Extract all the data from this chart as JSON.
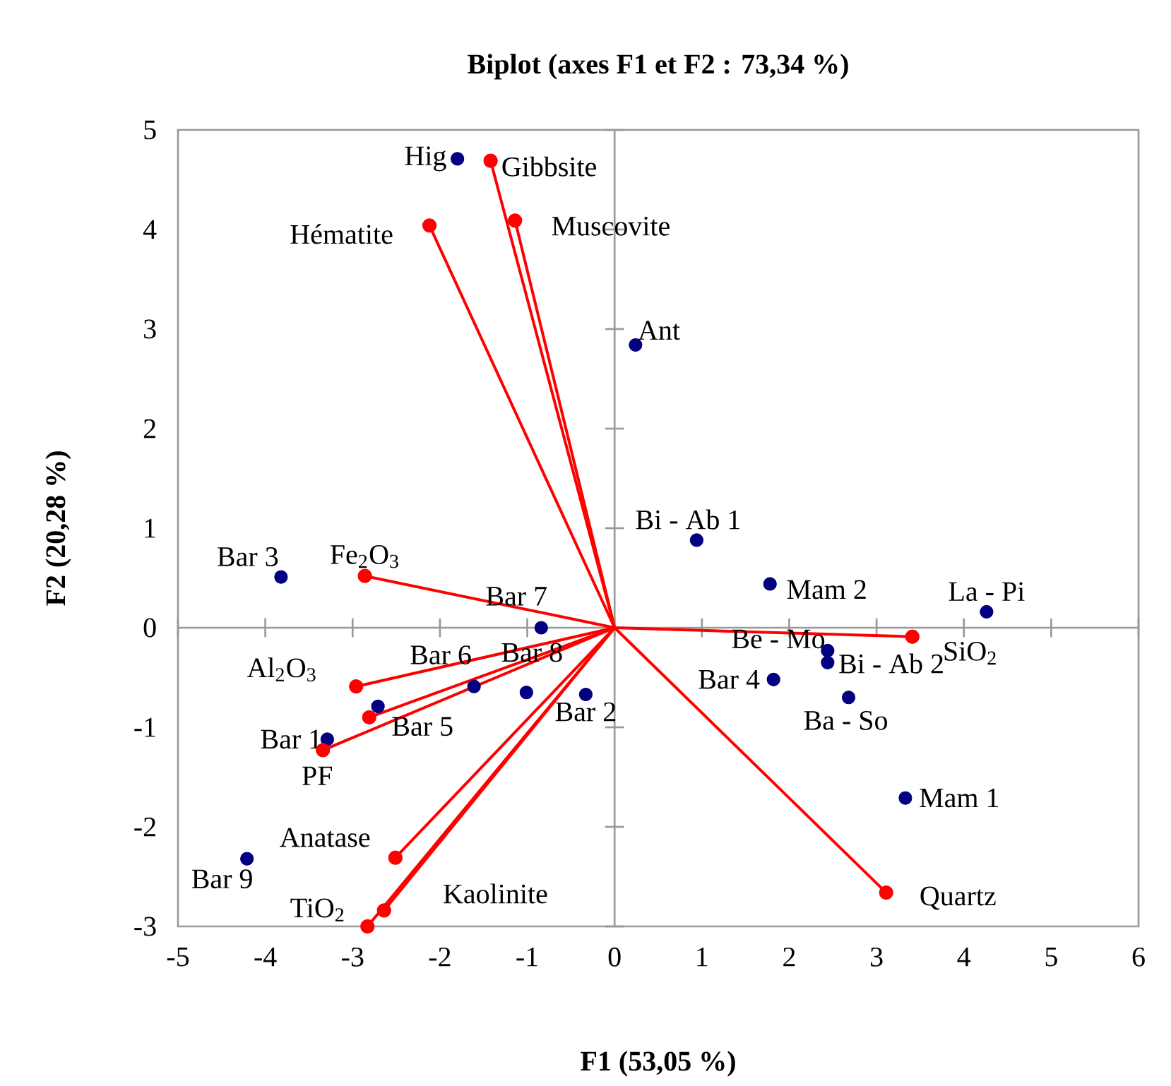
{
  "chart_data": {
    "type": "scatter",
    "title": "Biplot (axes F1 et F2 : 73,34 %)",
    "xlabel": "F1 (53,05 %)",
    "ylabel": "F2 (20,28 %)",
    "xlim": [
      -5,
      6
    ],
    "ylim": [
      -3,
      5
    ],
    "xticks": [
      -5,
      -4,
      -3,
      -2,
      -1,
      0,
      1,
      2,
      3,
      4,
      5,
      6
    ],
    "yticks": [
      -3,
      -2,
      -1,
      0,
      1,
      2,
      3,
      4,
      5
    ],
    "series": [
      {
        "type": "scatter",
        "color": "#000080",
        "marker": "circle",
        "x": [
          -1.8,
          0.24,
          0.94,
          1.78,
          4.26,
          2.44,
          2.44,
          2.68,
          1.82,
          3.33,
          -3.82,
          -0.84,
          -1.61,
          -1.01,
          -0.33,
          -2.71,
          -3.29,
          -4.21
        ],
        "values": [
          4.71,
          2.84,
          0.88,
          0.44,
          0.16,
          -0.23,
          -0.35,
          -0.7,
          -0.52,
          -1.71,
          0.51,
          0.0,
          -0.59,
          -0.65,
          -0.67,
          -0.79,
          -1.12,
          -2.32
        ]
      },
      {
        "type": "scatter",
        "color": "#ff0000",
        "marker": "circle",
        "x": [
          -1.42,
          -1.14,
          -2.12,
          -2.86,
          -2.96,
          -2.81,
          -3.34,
          -2.51,
          -2.64,
          -2.83,
          3.41,
          3.11
        ],
        "values": [
          4.69,
          4.09,
          4.04,
          0.52,
          -0.59,
          -0.9,
          -1.23,
          -2.31,
          -2.84,
          -3.0,
          -0.09,
          -2.66
        ]
      },
      {
        "type": "line",
        "color": "#ff0000",
        "x": [
          0,
          -1.42
        ],
        "values": [
          0,
          4.69
        ]
      },
      {
        "type": "line",
        "color": "#ff0000",
        "x": [
          0,
          -1.14
        ],
        "values": [
          0,
          4.09
        ]
      },
      {
        "type": "line",
        "color": "#ff0000",
        "x": [
          0,
          -2.12
        ],
        "values": [
          0,
          4.04
        ]
      },
      {
        "type": "line",
        "color": "#ff0000",
        "x": [
          0,
          -2.86
        ],
        "values": [
          0,
          0.52
        ]
      },
      {
        "type": "line",
        "color": "#ff0000",
        "x": [
          0,
          -2.96
        ],
        "values": [
          0,
          -0.59
        ]
      },
      {
        "type": "line",
        "color": "#ff0000",
        "x": [
          0,
          -2.81
        ],
        "values": [
          0,
          -0.9
        ]
      },
      {
        "type": "line",
        "color": "#ff0000",
        "x": [
          0,
          -3.34
        ],
        "values": [
          0,
          -1.23
        ]
      },
      {
        "type": "line",
        "color": "#ff0000",
        "x": [
          0,
          -2.51
        ],
        "values": [
          0,
          -2.31
        ]
      },
      {
        "type": "line",
        "color": "#ff0000",
        "x": [
          0,
          -2.64
        ],
        "values": [
          0,
          -2.84
        ]
      },
      {
        "type": "line",
        "color": "#ff0000",
        "x": [
          0,
          -2.83
        ],
        "values": [
          0,
          -3.0
        ]
      },
      {
        "type": "line",
        "color": "#ff0000",
        "x": [
          0,
          3.41
        ],
        "values": [
          0,
          -0.09
        ]
      },
      {
        "type": "line",
        "color": "#ff0000",
        "x": [
          0,
          3.11
        ],
        "values": [
          0,
          -2.66
        ]
      }
    ],
    "annotations": [
      {
        "text": "Hig",
        "x": -1.8,
        "y": 4.71
      },
      {
        "text": "Ant",
        "x": 0.24,
        "y": 2.84
      },
      {
        "text": "Bi - Ab 1",
        "x": 0.94,
        "y": 0.88
      },
      {
        "text": "Mam 2",
        "x": 1.78,
        "y": 0.44
      },
      {
        "text": "La - Pi",
        "x": 4.26,
        "y": 0.16
      },
      {
        "text": "Be - Mo",
        "x": 2.44,
        "y": -0.23
      },
      {
        "text": "Bi - Ab 2",
        "x": 2.44,
        "y": -0.35
      },
      {
        "text": "Ba - So",
        "x": 2.68,
        "y": -0.7
      },
      {
        "text": "Bar 4",
        "x": 1.82,
        "y": -0.52
      },
      {
        "text": "Mam 1",
        "x": 3.33,
        "y": -1.71
      },
      {
        "text": "Bar 3",
        "x": -3.82,
        "y": 0.51
      },
      {
        "text": "Bar 7",
        "x": -0.84,
        "y": 0.0
      },
      {
        "text": "Bar 6",
        "x": -1.61,
        "y": -0.59
      },
      {
        "text": "Bar 8",
        "x": -1.01,
        "y": -0.65
      },
      {
        "text": "Bar 2",
        "x": -0.33,
        "y": -0.67
      },
      {
        "text": "Bar 5",
        "x": -2.71,
        "y": -0.79
      },
      {
        "text": "Bar 1",
        "x": -3.29,
        "y": -1.12
      },
      {
        "text": "Bar 9",
        "x": -4.21,
        "y": -2.32
      },
      {
        "text": "Gibbsite",
        "x": -1.42,
        "y": 4.69
      },
      {
        "text": "Muscovite",
        "x": -1.14,
        "y": 4.09
      },
      {
        "text": "Hématite",
        "x": -2.12,
        "y": 4.04
      },
      {
        "text": "Fe$_{2}$O$_{3}$",
        "x": -2.86,
        "y": 0.52
      },
      {
        "text": "Al$_{2}$O$_{3}$",
        "x": -2.96,
        "y": -0.59
      },
      {
        "text": "PF",
        "x": -3.34,
        "y": -1.23
      },
      {
        "text": "Anatase",
        "x": -2.51,
        "y": -2.31
      },
      {
        "text": "Kaolinite",
        "x": -2.64,
        "y": -2.84
      },
      {
        "text": "TiO$_{2}$",
        "x": -2.83,
        "y": -3.0
      },
      {
        "text": "SiO$_{2}$",
        "x": 3.41,
        "y": -0.09
      },
      {
        "text": "Quartz",
        "x": 3.11,
        "y": -2.66
      }
    ]
  }
}
